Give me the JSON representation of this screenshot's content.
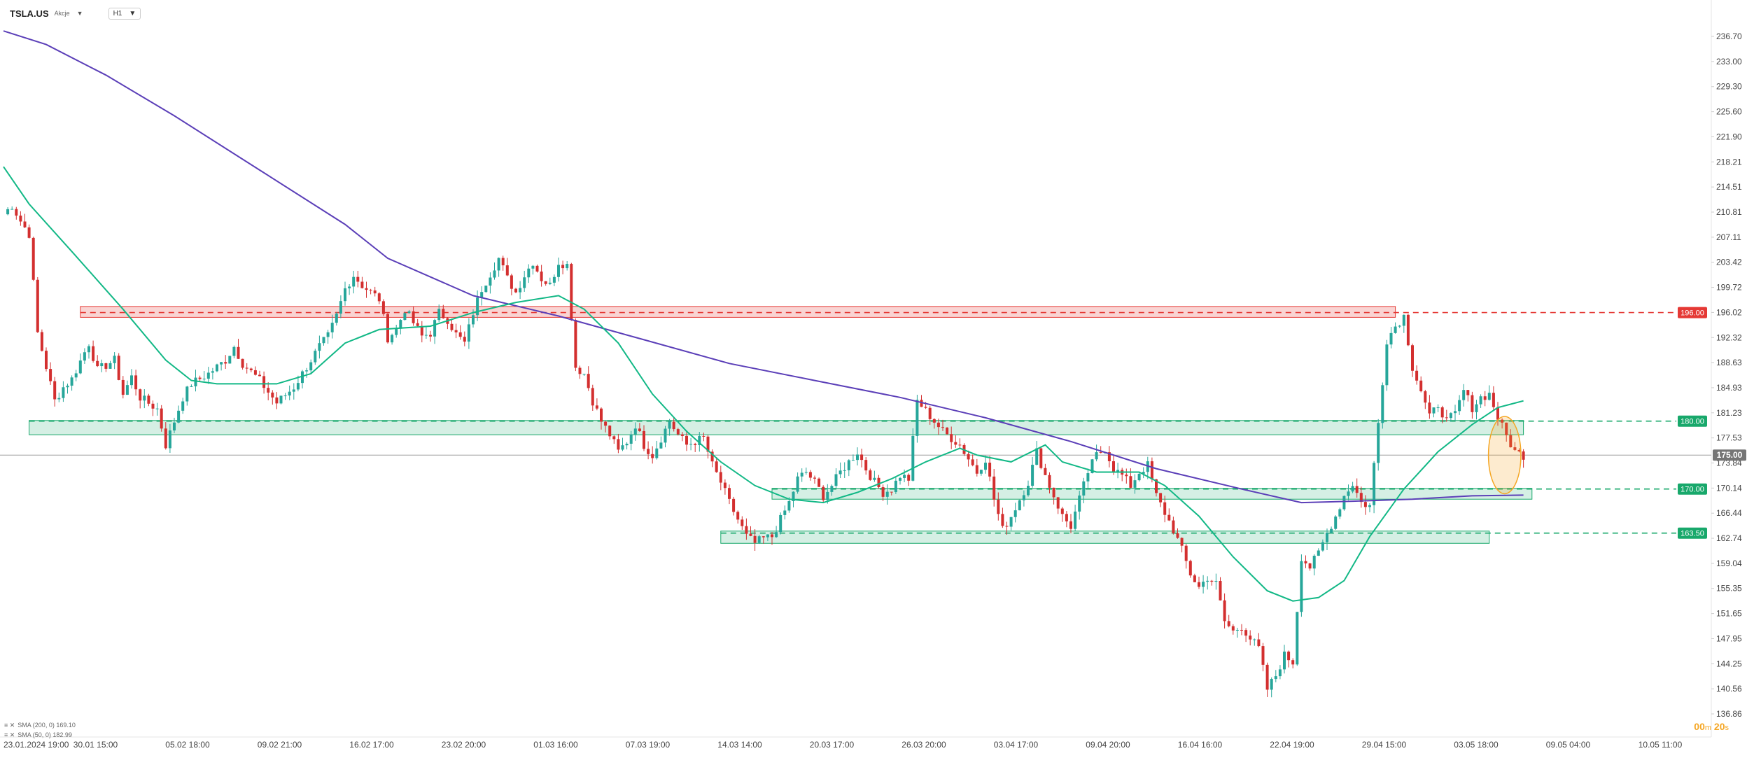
{
  "header": {
    "symbol": "TSLA.US",
    "symbol_type": "Akcje",
    "symbol_caret": "▼",
    "timeframe": "H1",
    "timeframe_caret": "▼"
  },
  "legend": [
    {
      "icon": "≡ ✕",
      "text": "SMA (200, 0) 169.10"
    },
    {
      "icon": "≡ ✕",
      "text": "SMA (50, 0) 182.99"
    }
  ],
  "timer": {
    "min": "00",
    "min_unit": "m",
    "sec": "20",
    "sec_unit": "s"
  },
  "colors": {
    "up": "#26a69a",
    "down": "#d32f2f",
    "sma200": "#5b3fb8",
    "sma50": "#12b886",
    "resistance": "#e53935",
    "support": "#18a86b",
    "highlight": "#f5a623"
  },
  "chart_data": {
    "type": "candlestick",
    "title": "TSLA.US",
    "timeframe": "H1",
    "ylim": [
      136.86,
      238.5
    ],
    "y_ticks": [
      "236.70",
      "233.00",
      "229.30",
      "225.60",
      "221.90",
      "218.21",
      "214.51",
      "210.81",
      "207.11",
      "203.42",
      "199.72",
      "196.02",
      "192.32",
      "188.63",
      "184.93",
      "181.23",
      "177.53",
      "173.84",
      "170.14",
      "166.44",
      "162.74",
      "159.04",
      "155.35",
      "151.65",
      "147.95",
      "144.25",
      "140.56",
      "136.86"
    ],
    "x_ticks": [
      "23.01.2024 19:00",
      "30.01 15:00",
      "05.02 18:00",
      "09.02 21:00",
      "16.02 17:00",
      "23.02 20:00",
      "01.03 16:00",
      "07.03 19:00",
      "14.03 14:00",
      "20.03 17:00",
      "26.03 20:00",
      "03.04 17:00",
      "09.04 20:00",
      "16.04 16:00",
      "22.04 19:00",
      "29.04 15:00",
      "03.05 18:00",
      "09.05 04:00",
      "10.05 11:00"
    ],
    "current_price": "175.00",
    "price_path": [
      [
        0,
        210.5
      ],
      [
        1,
        211.8
      ],
      [
        2,
        209.5
      ],
      [
        3,
        207.6
      ],
      [
        4,
        193.0
      ],
      [
        6,
        183.0
      ],
      [
        7,
        185.0
      ],
      [
        8,
        186.2
      ],
      [
        10,
        191.5
      ],
      [
        11,
        187.5
      ],
      [
        13,
        189.0
      ],
      [
        14,
        184.0
      ],
      [
        15,
        186.5
      ],
      [
        16,
        183.5
      ],
      [
        18,
        181.8
      ],
      [
        19,
        176.5
      ],
      [
        20,
        180.0
      ],
      [
        21,
        183.5
      ],
      [
        22,
        185.5
      ],
      [
        24,
        187.0
      ],
      [
        26,
        189.0
      ],
      [
        27,
        191.0
      ],
      [
        28,
        188.5
      ],
      [
        30,
        186.0
      ],
      [
        31,
        184.3
      ],
      [
        32,
        182.7
      ],
      [
        34,
        185.0
      ],
      [
        36,
        189.0
      ],
      [
        37,
        191.0
      ],
      [
        38,
        192.5
      ],
      [
        39,
        195.5
      ],
      [
        40,
        199.5
      ],
      [
        41,
        201.5
      ],
      [
        42,
        200.0
      ],
      [
        44,
        198.0
      ],
      [
        45,
        192.3
      ],
      [
        46,
        193.5
      ],
      [
        47,
        196.5
      ],
      [
        48,
        194.5
      ],
      [
        49,
        192.5
      ],
      [
        50,
        193.0
      ],
      [
        51,
        196.0
      ],
      [
        52,
        195.0
      ],
      [
        53,
        192.8
      ],
      [
        54,
        191.5
      ],
      [
        55,
        196.0
      ],
      [
        56,
        199.5
      ],
      [
        58,
        204.0
      ],
      [
        59,
        201.0
      ],
      [
        60,
        199.0
      ],
      [
        61,
        201.5
      ],
      [
        62,
        203.5
      ],
      [
        63,
        201.0
      ],
      [
        64,
        200.0
      ],
      [
        65,
        203.5
      ],
      [
        66,
        203.0
      ],
      [
        67,
        188.0
      ],
      [
        68,
        187.0
      ],
      [
        69,
        183.0
      ],
      [
        70,
        180.0
      ],
      [
        71,
        178.0
      ],
      [
        72,
        175.5
      ],
      [
        73,
        177.0
      ],
      [
        74,
        179.5
      ],
      [
        75,
        176.5
      ],
      [
        76,
        175.0
      ],
      [
        78,
        180.0
      ],
      [
        79,
        178.0
      ],
      [
        80,
        176.5
      ],
      [
        82,
        177.5
      ],
      [
        83,
        173.5
      ],
      [
        84,
        171.0
      ],
      [
        85,
        168.0
      ],
      [
        86,
        165.5
      ],
      [
        87,
        163.0
      ],
      [
        88,
        162.0
      ],
      [
        89,
        162.7
      ],
      [
        90,
        163.0
      ],
      [
        91,
        165.5
      ],
      [
        92,
        168.0
      ],
      [
        93,
        171.5
      ],
      [
        94,
        172.5
      ],
      [
        95,
        171.0
      ],
      [
        96,
        169.0
      ],
      [
        97,
        170.5
      ],
      [
        98,
        172.5
      ],
      [
        99,
        174.0
      ],
      [
        100,
        175.5
      ],
      [
        101,
        173.0
      ],
      [
        102,
        171.0
      ],
      [
        103,
        169.5
      ],
      [
        104,
        170.0
      ],
      [
        105,
        172.0
      ],
      [
        106,
        171.5
      ],
      [
        107,
        183.0
      ],
      [
        108,
        181.5
      ],
      [
        109,
        180.0
      ],
      [
        110,
        178.5
      ],
      [
        111,
        177.5
      ],
      [
        112,
        176.5
      ],
      [
        113,
        174.5
      ],
      [
        114,
        172.5
      ],
      [
        115,
        174.5
      ],
      [
        116,
        168.5
      ],
      [
        117,
        164.0
      ],
      [
        118,
        166.0
      ],
      [
        119,
        168.5
      ],
      [
        120,
        171.0
      ],
      [
        121,
        175.5
      ],
      [
        122,
        172.0
      ],
      [
        123,
        169.0
      ],
      [
        124,
        166.0
      ],
      [
        125,
        164.5
      ],
      [
        126,
        168.5
      ],
      [
        127,
        172.5
      ],
      [
        128,
        175.0
      ],
      [
        129,
        176.0
      ],
      [
        130,
        173.0
      ],
      [
        131,
        172.0
      ],
      [
        132,
        170.5
      ],
      [
        133,
        172.5
      ],
      [
        134,
        173.5
      ],
      [
        135,
        169.0
      ],
      [
        136,
        166.5
      ],
      [
        137,
        164.0
      ],
      [
        138,
        161.0
      ],
      [
        139,
        157.5
      ],
      [
        140,
        155.5
      ],
      [
        141,
        157.0
      ],
      [
        142,
        156.0
      ],
      [
        143,
        150.5
      ],
      [
        144,
        149.0
      ],
      [
        145,
        149.8
      ],
      [
        146,
        148.0
      ],
      [
        147,
        146.5
      ],
      [
        148,
        140.5
      ],
      [
        149,
        142.5
      ],
      [
        150,
        145.5
      ],
      [
        151,
        144.5
      ],
      [
        152,
        160.0
      ],
      [
        153,
        158.5
      ],
      [
        154,
        160.5
      ],
      [
        155,
        163.5
      ],
      [
        156,
        166.0
      ],
      [
        157,
        169.0
      ],
      [
        158,
        170.8
      ],
      [
        159,
        168.0
      ],
      [
        160,
        167.5
      ],
      [
        162,
        192.0
      ],
      [
        163,
        194.0
      ],
      [
        164,
        195.5
      ],
      [
        165,
        188.0
      ],
      [
        166,
        184.5
      ],
      [
        167,
        180.5
      ],
      [
        168,
        182.5
      ],
      [
        169,
        180.0
      ],
      [
        170,
        181.0
      ],
      [
        171,
        184.5
      ],
      [
        172,
        182.0
      ],
      [
        173,
        183.5
      ],
      [
        174,
        184.0
      ],
      [
        175,
        180.5
      ],
      [
        176,
        177.8
      ],
      [
        177,
        175.5
      ],
      [
        178,
        175.0
      ]
    ],
    "sma200": [
      [
        0,
        237.5
      ],
      [
        5,
        235.5
      ],
      [
        12,
        231.0
      ],
      [
        20,
        225.0
      ],
      [
        30,
        217.0
      ],
      [
        40,
        209.0
      ],
      [
        45,
        204.0
      ],
      [
        55,
        198.5
      ],
      [
        65,
        195.5
      ],
      [
        75,
        192.0
      ],
      [
        85,
        188.5
      ],
      [
        95,
        186.0
      ],
      [
        105,
        183.5
      ],
      [
        115,
        180.5
      ],
      [
        125,
        177.0
      ],
      [
        135,
        173.0
      ],
      [
        145,
        170.0
      ],
      [
        152,
        168.0
      ],
      [
        158,
        168.2
      ],
      [
        165,
        168.5
      ],
      [
        172,
        169.0
      ],
      [
        178,
        169.1
      ]
    ],
    "sma50": [
      [
        0,
        217.5
      ],
      [
        3,
        212.0
      ],
      [
        8,
        205.0
      ],
      [
        14,
        196.5
      ],
      [
        19,
        189.0
      ],
      [
        22,
        186.0
      ],
      [
        25,
        185.5
      ],
      [
        28,
        185.5
      ],
      [
        32,
        185.5
      ],
      [
        36,
        187.0
      ],
      [
        40,
        191.5
      ],
      [
        44,
        193.5
      ],
      [
        50,
        194.0
      ],
      [
        55,
        196.0
      ],
      [
        60,
        197.5
      ],
      [
        65,
        198.5
      ],
      [
        68,
        196.5
      ],
      [
        72,
        191.5
      ],
      [
        76,
        184.0
      ],
      [
        80,
        178.5
      ],
      [
        84,
        174.0
      ],
      [
        88,
        170.5
      ],
      [
        92,
        168.5
      ],
      [
        96,
        168.0
      ],
      [
        100,
        169.5
      ],
      [
        104,
        171.5
      ],
      [
        108,
        174.0
      ],
      [
        112,
        176.0
      ],
      [
        114,
        175.0
      ],
      [
        118,
        174.0
      ],
      [
        122,
        176.5
      ],
      [
        124,
        174.0
      ],
      [
        128,
        172.5
      ],
      [
        133,
        172.5
      ],
      [
        136,
        170.5
      ],
      [
        140,
        166.0
      ],
      [
        144,
        160.0
      ],
      [
        148,
        155.0
      ],
      [
        151,
        153.5
      ],
      [
        154,
        154.0
      ],
      [
        157,
        156.5
      ],
      [
        160,
        163.0
      ],
      [
        164,
        170.0
      ],
      [
        168,
        175.5
      ],
      [
        172,
        179.5
      ],
      [
        175,
        182.0
      ],
      [
        178,
        182.99
      ]
    ],
    "levels": [
      {
        "label": "196.00",
        "value": 196.0,
        "kind": "resistance",
        "zone": [
          195.3,
          196.9
        ],
        "zone_x": [
          9,
          163
        ]
      },
      {
        "label": "180.00",
        "value": 180.0,
        "kind": "support",
        "zone": [
          178.0,
          180.1
        ],
        "zone_x": [
          3,
          178
        ]
      },
      {
        "label": "170.00",
        "value": 170.0,
        "kind": "support",
        "zone": [
          168.5,
          170.1
        ],
        "zone_x": [
          90,
          179
        ]
      },
      {
        "label": "163.50",
        "value": 163.5,
        "kind": "support",
        "zone": [
          162.0,
          163.8
        ],
        "zone_x": [
          84,
          174
        ]
      }
    ],
    "highlight_ellipse": {
      "center_bar": 175.8,
      "center_value": 175.0,
      "semi_bars": 1.9,
      "semi_value": 5.7
    }
  }
}
